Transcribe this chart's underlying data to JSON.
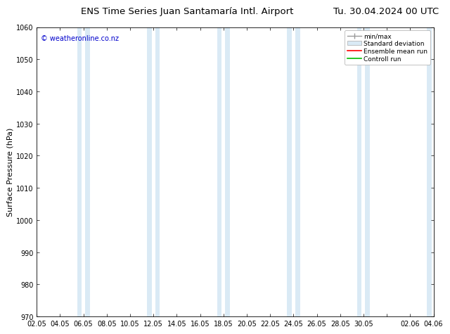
{
  "title_left": "ENS Time Series Juan Santamaría Intl. Airport",
  "title_right": "Tu. 30.04.2024 00 UTC",
  "ylabel": "Surface Pressure (hPa)",
  "ylim": [
    970,
    1060
  ],
  "yticks": [
    970,
    980,
    990,
    1000,
    1010,
    1020,
    1030,
    1040,
    1050,
    1060
  ],
  "xtick_labels": [
    "02.05",
    "04.05",
    "06.05",
    "08.05",
    "10.05",
    "12.05",
    "14.05",
    "16.05",
    "18.05",
    "20.05",
    "22.05",
    "24.05",
    "26.05",
    "28.05",
    "30.05",
    "",
    "02.06",
    "04.06"
  ],
  "band_color": "#daeaf5",
  "band_color2": "#c8dff0",
  "background_color": "#ffffff",
  "watermark": "© weatheronline.co.nz",
  "watermark_color": "#0000cc",
  "legend_items": [
    "min/max",
    "Standard deviation",
    "Ensemble mean run",
    "Controll run"
  ],
  "legend_colors": [
    "#aaaaaa",
    "#daeaf5",
    "#ff0000",
    "#00bb00"
  ],
  "title_fontsize": 9.5,
  "tick_fontsize": 7,
  "ylabel_fontsize": 8,
  "axis_color": "#000000"
}
